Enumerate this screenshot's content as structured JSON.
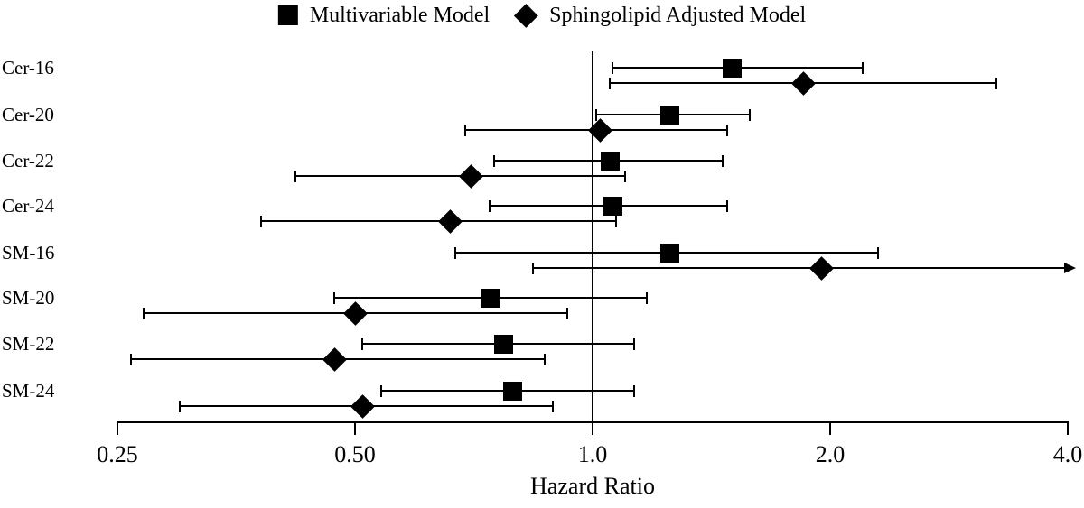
{
  "figure": {
    "background": "#ffffff",
    "foreground": "#000000"
  },
  "legend": {
    "items": [
      {
        "icon": "filled-square",
        "label": "Multivariable Model"
      },
      {
        "icon": "filled-diamond",
        "label": "Sphingolipid Adjusted Model"
      }
    ]
  },
  "chart_data": {
    "type": "forest",
    "title": "",
    "xlabel": "Hazard Ratio",
    "x_scale": "log2",
    "x_range": [
      0.25,
      4.0
    ],
    "reference_line": 1.0,
    "grid": false,
    "legend_position": "top-center",
    "x_ticks": [
      {
        "value": 0.25,
        "label": "0.25"
      },
      {
        "value": 0.5,
        "label": "0.50"
      },
      {
        "value": 1.0,
        "label": "1.0"
      },
      {
        "value": 2.0,
        "label": "2.0"
      },
      {
        "value": 4.0,
        "label": "4.0"
      }
    ],
    "categories": [
      "Cer-16",
      "Cer-20",
      "Cer-22",
      "Cer-24",
      "SM-16",
      "SM-20",
      "SM-22",
      "SM-24"
    ],
    "series": [
      {
        "name": "Multivariable Model",
        "marker": "square",
        "points": [
          {
            "category": "Cer-16",
            "hr": 1.5,
            "lo": 1.06,
            "hi": 2.2
          },
          {
            "category": "Cer-20",
            "hr": 1.25,
            "lo": 1.01,
            "hi": 1.58
          },
          {
            "category": "Cer-22",
            "hr": 1.05,
            "lo": 0.75,
            "hi": 1.46
          },
          {
            "category": "Cer-24",
            "hr": 1.06,
            "lo": 0.74,
            "hi": 1.48
          },
          {
            "category": "SM-16",
            "hr": 1.25,
            "lo": 0.67,
            "hi": 2.3
          },
          {
            "category": "SM-20",
            "hr": 0.74,
            "lo": 0.47,
            "hi": 1.17
          },
          {
            "category": "SM-22",
            "hr": 0.77,
            "lo": 0.51,
            "hi": 1.13
          },
          {
            "category": "SM-24",
            "hr": 0.79,
            "lo": 0.54,
            "hi": 1.13
          }
        ]
      },
      {
        "name": "Sphingolipid Adjusted Model",
        "marker": "diamond",
        "points": [
          {
            "category": "Cer-16",
            "hr": 1.85,
            "lo": 1.05,
            "hi": 3.25
          },
          {
            "category": "Cer-20",
            "hr": 1.02,
            "lo": 0.69,
            "hi": 1.48
          },
          {
            "category": "Cer-22",
            "hr": 0.7,
            "lo": 0.42,
            "hi": 1.1
          },
          {
            "category": "Cer-24",
            "hr": 0.66,
            "lo": 0.38,
            "hi": 1.07
          },
          {
            "category": "SM-16",
            "hr": 1.95,
            "lo": 0.84,
            "hi": 4.0,
            "hi_arrow": true
          },
          {
            "category": "SM-20",
            "hr": 0.5,
            "lo": 0.27,
            "hi": 0.93
          },
          {
            "category": "SM-22",
            "hr": 0.47,
            "lo": 0.26,
            "hi": 0.87
          },
          {
            "category": "SM-24",
            "hr": 0.51,
            "lo": 0.3,
            "hi": 0.89
          }
        ]
      }
    ]
  }
}
